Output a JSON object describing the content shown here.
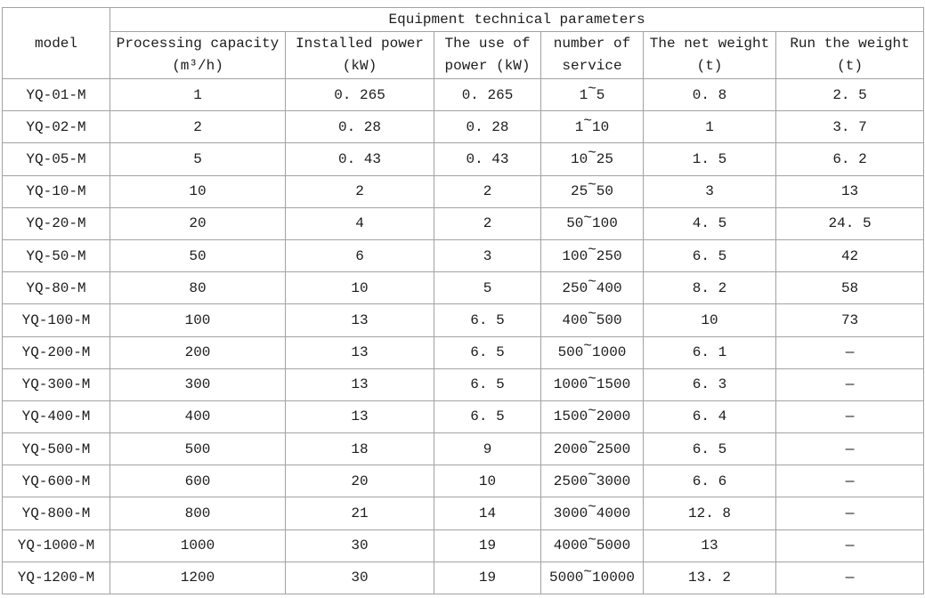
{
  "table": {
    "title": "Equipment technical parameters",
    "model_header": "model",
    "columns": [
      {
        "line1": "Processing capacity",
        "line2": "(m³/h)"
      },
      {
        "line1": "Installed power",
        "line2": "(kW)"
      },
      {
        "line1": "The use of",
        "line2": "power (kW)"
      },
      {
        "line1": "number of",
        "line2": "service"
      },
      {
        "line1": "The net weight",
        "line2": "(t)"
      },
      {
        "line1": "Run the weight",
        "line2": "(t)"
      }
    ],
    "rows": [
      {
        "model": "YQ-01-M",
        "capacity": "1",
        "installed_power": "0. 265",
        "use_of_power": "0. 265",
        "service": "1~5",
        "net_weight": "0. 8",
        "run_weight": "2. 5"
      },
      {
        "model": "YQ-02-M",
        "capacity": "2",
        "installed_power": "0. 28",
        "use_of_power": "0. 28",
        "service": "1~10",
        "net_weight": "1",
        "run_weight": "3. 7"
      },
      {
        "model": "YQ-05-M",
        "capacity": "5",
        "installed_power": "0. 43",
        "use_of_power": "0. 43",
        "service": "10~25",
        "net_weight": "1. 5",
        "run_weight": "6. 2"
      },
      {
        "model": "YQ-10-M",
        "capacity": "10",
        "installed_power": "2",
        "use_of_power": "2",
        "service": "25~50",
        "net_weight": "3",
        "run_weight": "13"
      },
      {
        "model": "YQ-20-M",
        "capacity": "20",
        "installed_power": "4",
        "use_of_power": "2",
        "service": "50~100",
        "net_weight": "4. 5",
        "run_weight": "24. 5"
      },
      {
        "model": "YQ-50-M",
        "capacity": "50",
        "installed_power": "6",
        "use_of_power": "3",
        "service": "100~250",
        "net_weight": "6. 5",
        "run_weight": "42"
      },
      {
        "model": "YQ-80-M",
        "capacity": "80",
        "installed_power": "10",
        "use_of_power": "5",
        "service": "250~400",
        "net_weight": "8. 2",
        "run_weight": "58"
      },
      {
        "model": "YQ-100-M",
        "capacity": "100",
        "installed_power": "13",
        "use_of_power": "6. 5",
        "service": "400~500",
        "net_weight": "10",
        "run_weight": "73"
      },
      {
        "model": "YQ-200-M",
        "capacity": "200",
        "installed_power": "13",
        "use_of_power": "6. 5",
        "service": "500~1000",
        "net_weight": "6. 1",
        "run_weight": "—"
      },
      {
        "model": "YQ-300-M",
        "capacity": "300",
        "installed_power": "13",
        "use_of_power": "6. 5",
        "service": "1000~1500",
        "net_weight": "6. 3",
        "run_weight": "—"
      },
      {
        "model": "YQ-400-M",
        "capacity": "400",
        "installed_power": "13",
        "use_of_power": "6. 5",
        "service": "1500~2000",
        "net_weight": "6. 4",
        "run_weight": "—"
      },
      {
        "model": "YQ-500-M",
        "capacity": "500",
        "installed_power": "18",
        "use_of_power": "9",
        "service": "2000~2500",
        "net_weight": "6. 5",
        "run_weight": "—"
      },
      {
        "model": "YQ-600-M",
        "capacity": "600",
        "installed_power": "20",
        "use_of_power": "10",
        "service": "2500~3000",
        "net_weight": "6. 6",
        "run_weight": "—"
      },
      {
        "model": "YQ-800-M",
        "capacity": "800",
        "installed_power": "21",
        "use_of_power": "14",
        "service": "3000~4000",
        "net_weight": "12. 8",
        "run_weight": "—"
      },
      {
        "model": "YQ-1000-M",
        "capacity": "1000",
        "installed_power": "30",
        "use_of_power": "19",
        "service": "4000~5000",
        "net_weight": "13",
        "run_weight": "—"
      },
      {
        "model": "YQ-1200-M",
        "capacity": "1200",
        "installed_power": "30",
        "use_of_power": "19",
        "service": "5000~10000",
        "net_weight": "13. 2",
        "run_weight": "—"
      }
    ]
  },
  "colors": {
    "border": "#a2a2a2",
    "text": "#1c1c1c",
    "background": "#ffffff"
  }
}
